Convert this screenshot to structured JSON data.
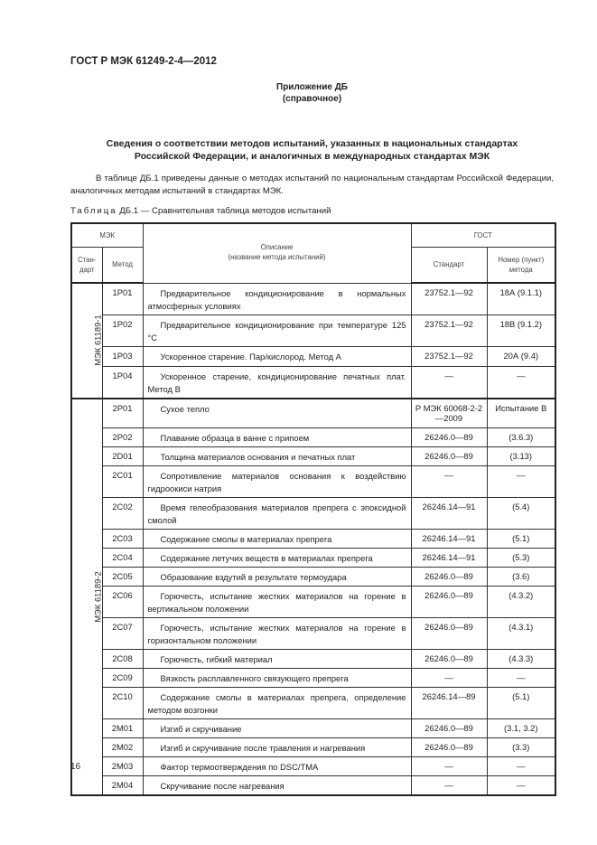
{
  "header": {
    "doc_code": "ГОСТ Р МЭК 61249-2-4—2012"
  },
  "appendix": {
    "title": "Приложение ДБ",
    "subtitle": "(справочное)"
  },
  "section": {
    "title_line1": "Сведения о соответствии методов испытаний, указанных в национальных стандартах",
    "title_line2": "Российской Федерации, и аналогичных в международных стандартах МЭК"
  },
  "intro": "В таблице ДБ.1 приведены данные о методах испытаний по национальным стандартам Российской Федерации, аналогичных методам испытаний в стандартах МЭК.",
  "caption": {
    "prefix": "Таблица",
    "text": " ДБ.1 — Сравнительная таблица методов испытаний"
  },
  "table": {
    "headers": {
      "iec": "МЭК",
      "description": "Описание",
      "description_sub": "(название метода испытаний)",
      "gost": "ГОСТ",
      "standard": "Стан-дарт",
      "method": "Метод",
      "gost_standard": "Стандарт",
      "gost_number": "Номер (пункт) метода"
    },
    "groups": [
      {
        "standard": "МЭК 61189-1",
        "rows": [
          {
            "method": "1P01",
            "description": "Предварительное кондиционирование в нормальных атмосферных условиях",
            "gost_standard": "23752.1—92",
            "gost_number": "18А (9.1.1)"
          },
          {
            "method": "1P02",
            "description": "Предварительное кондиционирование при температуре 125 °С",
            "gost_standard": "23752.1—92",
            "gost_number": "18В (9.1.2)"
          },
          {
            "method": "1P03",
            "description": "Ускоренное старение. Пар/кислород. Метод А",
            "gost_standard": "23752.1—92",
            "gost_number": "20А (9.4)"
          },
          {
            "method": "1P04",
            "description": "Ускоренное старение, кондиционирование печатных плат. Метод В",
            "gost_standard": "—",
            "gost_number": "—"
          }
        ]
      },
      {
        "standard": "МЭК 61189-2",
        "rows": [
          {
            "method": "2P01",
            "description": "Сухое тепло",
            "gost_standard": "Р МЭК 60068-2-2—2009",
            "gost_number": "Испытание В"
          },
          {
            "method": "2P02",
            "description": "Плавание образца в ванне с припоем",
            "gost_standard": "26246.0—89",
            "gost_number": "(3.6.3)"
          },
          {
            "method": "2D01",
            "description": "Толщина материалов основания и печатных плат",
            "gost_standard": "26246.0—89",
            "gost_number": "(3.13)"
          },
          {
            "method": "2C01",
            "description": "Сопротивление материалов основания к воздействию гидроокиси натрия",
            "gost_standard": "—",
            "gost_number": "—"
          },
          {
            "method": "2C02",
            "description": "Время гелеобразования материалов препрега с эпоксидной смолой",
            "gost_standard": "26246.14—91",
            "gost_number": "(5.4)"
          },
          {
            "method": "2C03",
            "description": "Содержание смолы в материалах препрега",
            "gost_standard": "26246.14—91",
            "gost_number": "(5.1)"
          },
          {
            "method": "2C04",
            "description": "Содержание летучих веществ в материалах препрега",
            "gost_standard": "26246.14—91",
            "gost_number": "(5.3)"
          },
          {
            "method": "2C05",
            "description": "Образование вздутий в результате термоудара",
            "gost_standard": "26246.0—89",
            "gost_number": "(3.6)"
          },
          {
            "method": "2C06",
            "description": "Горючесть, испытание жестких материалов на горение в вертикальном положении",
            "gost_standard": "26246.0—89",
            "gost_number": "(4.3.2)"
          },
          {
            "method": "2C07",
            "description": "Горючесть, испытание жестких материалов на горение в горизонтальном положении",
            "gost_standard": "26246.0—89",
            "gost_number": "(4.3.1)"
          },
          {
            "method": "2C08",
            "description": "Горючесть, гибкий материал",
            "gost_standard": "26246.0—89",
            "gost_number": "(4.3.3)"
          },
          {
            "method": "2C09",
            "description": "Вязкость расплавленного связующего препрега",
            "gost_standard": "—",
            "gost_number": "—"
          },
          {
            "method": "2C10",
            "description": "Содержание смолы в материалах препрега, определение методом возгонки",
            "gost_standard": "26246.14—89",
            "gost_number": "(5.1)"
          },
          {
            "method": "2M01",
            "description": "Изгиб и скручивание",
            "gost_standard": "26246.0—89",
            "gost_number": "(3.1, 3.2)"
          },
          {
            "method": "2M02",
            "description": "Изгиб и скручивание после травления и нагревания",
            "gost_standard": "26246.0—89",
            "gost_number": "(3.3)"
          },
          {
            "method": "2M03",
            "description": "Фактор термоотверждения по DSC/TMA",
            "gost_standard": "—",
            "gost_number": "—"
          },
          {
            "method": "2M04",
            "description": "Скручивание после нагревания",
            "gost_standard": "—",
            "gost_number": "—"
          }
        ]
      }
    ]
  },
  "footer": {
    "page_number": "16"
  }
}
